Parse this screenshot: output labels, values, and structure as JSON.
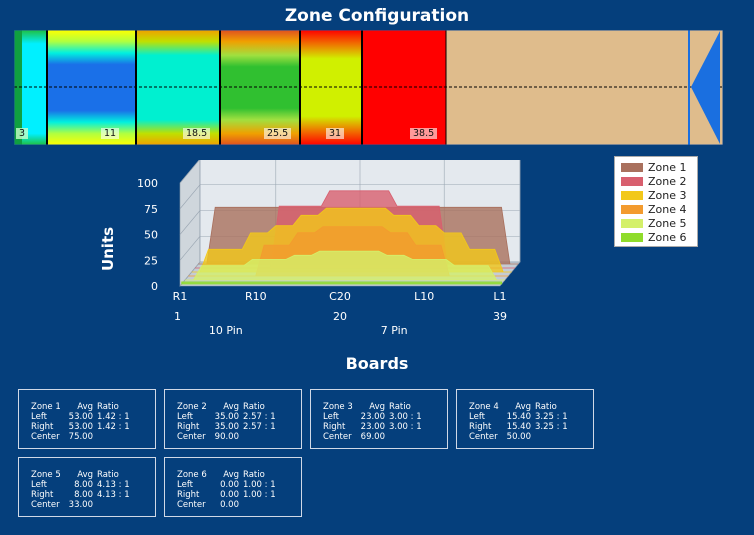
{
  "title": "Zone Configuration",
  "lane": {
    "markers": [
      "3",
      "11",
      "18.5",
      "25.5",
      "31",
      "38.5"
    ]
  },
  "chart_data": {
    "type": "area",
    "ylabel": "Units",
    "yticks": [
      "0",
      "25",
      "50",
      "75",
      "100"
    ],
    "ylim": [
      0,
      100
    ],
    "x_tick_labels": [
      "R1",
      "R10",
      "C20",
      "L10",
      "L1"
    ],
    "x_board_numbers": [
      "1",
      "20",
      "39"
    ],
    "x_pin_labels": [
      "10 Pin",
      "7 Pin"
    ],
    "x_boards": [
      1,
      2,
      3,
      4,
      5,
      6,
      7,
      8,
      9,
      10,
      11,
      12,
      13,
      14,
      15,
      16,
      17,
      18,
      19,
      20,
      21,
      22,
      23,
      24,
      25,
      26,
      27,
      28,
      29,
      30,
      31,
      32,
      33,
      34,
      35,
      36,
      37,
      38,
      39
    ],
    "series": [
      {
        "name": "Zone 1",
        "color": "#a9705d",
        "values": [
          0,
          0,
          55,
          55,
          55,
          55,
          55,
          55,
          55,
          55,
          55,
          55,
          55,
          55,
          55,
          55,
          55,
          55,
          55,
          55,
          55,
          55,
          55,
          55,
          55,
          55,
          55,
          55,
          55,
          55,
          55,
          55,
          55,
          55,
          55,
          55,
          55,
          0,
          0
        ]
      },
      {
        "name": "Zone 2",
        "color": "#d85f6e",
        "values": [
          0,
          0,
          0,
          0,
          0,
          0,
          0,
          0,
          0,
          0,
          60,
          60,
          60,
          60,
          60,
          60,
          75,
          75,
          75,
          75,
          75,
          75,
          75,
          75,
          60,
          60,
          60,
          60,
          60,
          60,
          0,
          0,
          0,
          0,
          0,
          0,
          0,
          0,
          0
        ]
      },
      {
        "name": "Zone 3",
        "color": "#f2c81a",
        "values": [
          0,
          0,
          22,
          22,
          22,
          22,
          22,
          38,
          38,
          38,
          45,
          45,
          45,
          55,
          55,
          55,
          62,
          62,
          62,
          62,
          62,
          62,
          62,
          62,
          55,
          55,
          55,
          45,
          45,
          45,
          38,
          38,
          38,
          22,
          22,
          22,
          22,
          0,
          0
        ]
      },
      {
        "name": "Zone 4",
        "color": "#f39b2e",
        "values": [
          0,
          0,
          0,
          0,
          0,
          0,
          0,
          0,
          0,
          30,
          30,
          30,
          30,
          42,
          42,
          42,
          48,
          48,
          48,
          48,
          48,
          48,
          48,
          48,
          42,
          42,
          42,
          30,
          30,
          30,
          30,
          0,
          0,
          0,
          0,
          0,
          0,
          0,
          0
        ]
      },
      {
        "name": "Zone 5",
        "color": "#d4f06a",
        "values": [
          0,
          0,
          14,
          14,
          14,
          14,
          14,
          14,
          20,
          20,
          20,
          20,
          20,
          24,
          24,
          24,
          28,
          28,
          28,
          28,
          28,
          28,
          28,
          28,
          24,
          24,
          24,
          20,
          20,
          20,
          20,
          20,
          14,
          14,
          14,
          14,
          14,
          0,
          0
        ]
      },
      {
        "name": "Zone 6",
        "color": "#8fdc2a",
        "values": [
          2,
          2,
          2,
          2,
          2,
          2,
          2,
          2,
          2,
          2,
          2,
          2,
          2,
          2,
          2,
          2,
          2,
          2,
          2,
          2,
          2,
          2,
          2,
          2,
          2,
          2,
          2,
          2,
          2,
          2,
          2,
          2,
          2,
          2,
          2,
          2,
          2,
          2,
          2
        ]
      }
    ],
    "legend_position": "top-right",
    "grid": true
  },
  "boards_title": "Boards",
  "boards": [
    {
      "zone": "Zone 1",
      "h_avg": "Avg",
      "h_ratio": "Ratio",
      "left": "53.00",
      "left_ratio": "1.42 : 1",
      "right": "53.00",
      "right_ratio": "1.42 : 1",
      "center": "75.00"
    },
    {
      "zone": "Zone 2",
      "h_avg": "Avg",
      "h_ratio": "Ratio",
      "left": "35.00",
      "left_ratio": "2.57 : 1",
      "right": "35.00",
      "right_ratio": "2.57 : 1",
      "center": "90.00"
    },
    {
      "zone": "Zone 3",
      "h_avg": "Avg",
      "h_ratio": "Ratio",
      "left": "23.00",
      "left_ratio": "3.00 : 1",
      "right": "23.00",
      "right_ratio": "3.00 : 1",
      "center": "69.00"
    },
    {
      "zone": "Zone 4",
      "h_avg": "Avg",
      "h_ratio": "Ratio",
      "left": "15.40",
      "left_ratio": "3.25 : 1",
      "right": "15.40",
      "right_ratio": "3.25 : 1",
      "center": "50.00"
    },
    {
      "zone": "Zone 5",
      "h_avg": "Avg",
      "h_ratio": "Ratio",
      "left": "8.00",
      "left_ratio": "4.13 : 1",
      "right": "8.00",
      "right_ratio": "4.13 : 1",
      "center": "33.00"
    },
    {
      "zone": "Zone 6",
      "h_avg": "Avg",
      "h_ratio": "Ratio",
      "left": "0.00",
      "left_ratio": "1.00 : 1",
      "right": "0.00",
      "right_ratio": "1.00 : 1",
      "center": "0.00"
    }
  ],
  "row_labels": {
    "left": "Left",
    "right": "Right",
    "center": "Center"
  }
}
